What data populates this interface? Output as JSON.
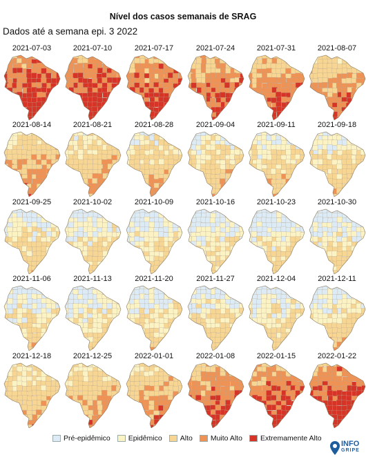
{
  "title": "Nível dos casos semanais de SRAG",
  "subtitle": "Dados até a semana epi. 3 2022",
  "levels": [
    {
      "key": "pre",
      "label": "Pré-epidêmico",
      "color": "#dcebf5"
    },
    {
      "key": "epi",
      "label": "Epidêmico",
      "color": "#fcf3c4"
    },
    {
      "key": "alto",
      "label": "Alto",
      "color": "#f7d592"
    },
    {
      "key": "muito",
      "label": "Muito Alto",
      "color": "#ef9255"
    },
    {
      "key": "extremo",
      "label": "Extremamente Alto",
      "color": "#d63427"
    }
  ],
  "maps": [
    {
      "date": "2021-07-03",
      "intensity": 0.92
    },
    {
      "date": "2021-07-10",
      "intensity": 0.9
    },
    {
      "date": "2021-07-17",
      "intensity": 0.85
    },
    {
      "date": "2021-07-24",
      "intensity": 0.78
    },
    {
      "date": "2021-07-31",
      "intensity": 0.72
    },
    {
      "date": "2021-08-07",
      "intensity": 0.65
    },
    {
      "date": "2021-08-14",
      "intensity": 0.56
    },
    {
      "date": "2021-08-21",
      "intensity": 0.5
    },
    {
      "date": "2021-08-28",
      "intensity": 0.42
    },
    {
      "date": "2021-09-04",
      "intensity": 0.38
    },
    {
      "date": "2021-09-11",
      "intensity": 0.35
    },
    {
      "date": "2021-09-18",
      "intensity": 0.33
    },
    {
      "date": "2021-09-25",
      "intensity": 0.28
    },
    {
      "date": "2021-10-02",
      "intensity": 0.24
    },
    {
      "date": "2021-10-09",
      "intensity": 0.22
    },
    {
      "date": "2021-10-16",
      "intensity": 0.2
    },
    {
      "date": "2021-10-23",
      "intensity": 0.2
    },
    {
      "date": "2021-10-30",
      "intensity": 0.22
    },
    {
      "date": "2021-11-06",
      "intensity": 0.26
    },
    {
      "date": "2021-11-13",
      "intensity": 0.24
    },
    {
      "date": "2021-11-20",
      "intensity": 0.26
    },
    {
      "date": "2021-11-27",
      "intensity": 0.3
    },
    {
      "date": "2021-12-04",
      "intensity": 0.27
    },
    {
      "date": "2021-12-11",
      "intensity": 0.3
    },
    {
      "date": "2021-12-18",
      "intensity": 0.45
    },
    {
      "date": "2021-12-25",
      "intensity": 0.52
    },
    {
      "date": "2022-01-01",
      "intensity": 0.58
    },
    {
      "date": "2022-01-08",
      "intensity": 0.75
    },
    {
      "date": "2022-01-15",
      "intensity": 0.85
    },
    {
      "date": "2022-01-22",
      "intensity": 0.9
    }
  ],
  "logo": {
    "line1": "INFO",
    "line2": "GRIPE",
    "icon": "location-pin-icon"
  }
}
